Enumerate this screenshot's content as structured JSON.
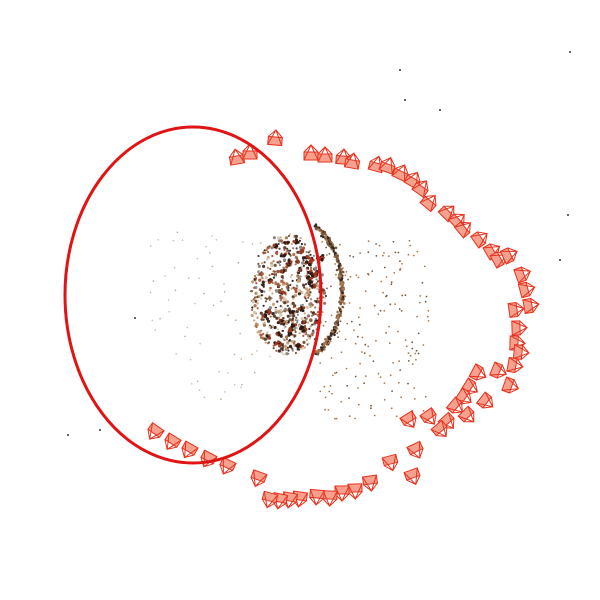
{
  "scene": {
    "background": "#ffffff",
    "camera_color": "#e8321e",
    "camera_fill": "#f6a08e",
    "highlight_color": "#e01414",
    "point_colors": [
      "#3a2a22",
      "#7a5a3e",
      "#a8784e",
      "#c9a27a",
      "#8a8a88",
      "#5c4032",
      "#b45a3c",
      "#d8c8b0"
    ],
    "highlight_label": "",
    "camera_count": 96,
    "point_count": 1400
  }
}
